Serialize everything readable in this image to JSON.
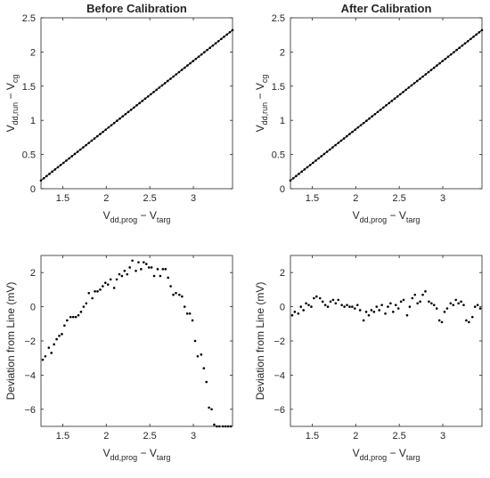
{
  "chart_data": [
    {
      "id": "before_main",
      "type": "line",
      "title": "Before Calibration",
      "xlabel": {
        "base": "V",
        "sub1": "dd,prog",
        "mid": " − V",
        "sub2": "targ"
      },
      "ylabel": {
        "base": "V",
        "sub1": "dd,run",
        "mid": " − V",
        "sub2": "cg"
      },
      "xlim": [
        1.25,
        3.45
      ],
      "ylim": [
        0,
        2.5
      ],
      "xticks": [
        1.5,
        2,
        2.5,
        3
      ],
      "xticklabels": [
        "1.5",
        "2",
        "2.5",
        "3"
      ],
      "yticks": [
        0,
        0.5,
        1,
        1.5,
        2,
        2.5
      ],
      "yticklabels": [
        "0",
        "0.5",
        "1",
        "1.5",
        "2",
        "2.5"
      ],
      "grid": false,
      "line": {
        "x": [
          1.25,
          3.45
        ],
        "y": [
          0.12,
          2.32
        ]
      },
      "markers": {
        "x_start": 1.25,
        "x_end": 3.45,
        "count": 69,
        "slope": 1.0,
        "intercept": -1.13
      }
    },
    {
      "id": "after_main",
      "type": "line",
      "title": "After Calibration",
      "xlabel": {
        "base": "V",
        "sub1": "dd,prog",
        "mid": " − V",
        "sub2": "targ"
      },
      "ylabel": {
        "base": "V",
        "sub1": "dd,run",
        "mid": " − V",
        "sub2": "cg"
      },
      "xlim": [
        1.25,
        3.45
      ],
      "ylim": [
        0,
        2.5
      ],
      "xticks": [
        1.5,
        2,
        2.5,
        3
      ],
      "xticklabels": [
        "1.5",
        "2",
        "2.5",
        "3"
      ],
      "yticks": [
        0,
        0.5,
        1,
        1.5,
        2,
        2.5
      ],
      "yticklabels": [
        "0",
        "0.5",
        "1",
        "1.5",
        "2",
        "2.5"
      ],
      "grid": false,
      "line": {
        "x": [
          1.25,
          3.45
        ],
        "y": [
          0.12,
          2.32
        ]
      },
      "markers": {
        "x_start": 1.25,
        "x_end": 3.45,
        "count": 69,
        "slope": 1.0,
        "intercept": -1.13
      }
    },
    {
      "id": "before_dev",
      "type": "scatter",
      "title": "",
      "xlabel": {
        "base": "V",
        "sub1": "dd,prog",
        "mid": " − V",
        "sub2": "targ"
      },
      "ylabel": {
        "text": "Deviation from Line (mV)"
      },
      "xlim": [
        1.25,
        3.45
      ],
      "ylim": [
        -7,
        3
      ],
      "xticks": [
        1.5,
        2,
        2.5,
        3
      ],
      "xticklabels": [
        "1.5",
        "2",
        "2.5",
        "3"
      ],
      "yticks": [
        -6,
        -4,
        -2,
        0,
        2
      ],
      "yticklabels": [
        "−6",
        "−4",
        "−2",
        "0",
        "2"
      ],
      "grid": false,
      "points": {
        "x": [
          1.27,
          1.3,
          1.34,
          1.37,
          1.4,
          1.43,
          1.46,
          1.49,
          1.52,
          1.55,
          1.59,
          1.62,
          1.65,
          1.68,
          1.71,
          1.74,
          1.77,
          1.8,
          1.84,
          1.87,
          1.9,
          1.93,
          1.96,
          1.99,
          2.02,
          2.05,
          2.09,
          2.12,
          2.15,
          2.18,
          2.21,
          2.24,
          2.27,
          2.3,
          2.34,
          2.37,
          2.4,
          2.43,
          2.46,
          2.49,
          2.52,
          2.55,
          2.59,
          2.62,
          2.65,
          2.68,
          2.71,
          2.74,
          2.77,
          2.8,
          2.84,
          2.87,
          2.9,
          2.93,
          2.96,
          2.99,
          3.02,
          3.05,
          3.09,
          3.12,
          3.15,
          3.18,
          3.21,
          3.24,
          3.27,
          3.3,
          3.34,
          3.37,
          3.4,
          3.43
        ],
        "y": [
          -3.1,
          -2.9,
          -2.4,
          -2.7,
          -2.2,
          -1.9,
          -1.7,
          -1.6,
          -1.1,
          -0.8,
          -0.6,
          -0.6,
          -0.6,
          -0.5,
          -0.3,
          0.0,
          0.2,
          0.8,
          0.5,
          0.9,
          0.9,
          1.0,
          1.2,
          1.4,
          1.3,
          1.6,
          1.1,
          1.6,
          1.9,
          1.8,
          2.1,
          1.9,
          2.3,
          2.7,
          2.1,
          2.6,
          2.2,
          2.6,
          2.5,
          2.3,
          2.3,
          1.8,
          2.2,
          1.8,
          2.2,
          2.2,
          1.7,
          1.2,
          0.7,
          0.8,
          0.7,
          0.6,
          0.0,
          -0.4,
          -0.4,
          -0.8,
          -2.0,
          -2.9,
          -2.8,
          -3.6,
          -4.4,
          -5.9,
          -6.0,
          -6.9,
          -7.0,
          -7.0,
          -7.0,
          -7.0,
          -7.0,
          -7.0
        ]
      }
    },
    {
      "id": "after_dev",
      "type": "scatter",
      "title": "",
      "xlabel": {
        "base": "V",
        "sub1": "dd,prog",
        "mid": " − V",
        "sub2": "targ"
      },
      "ylabel": {
        "text": "Deviation from Line (mV)"
      },
      "xlim": [
        1.25,
        3.45
      ],
      "ylim": [
        -7,
        3
      ],
      "xticks": [
        1.5,
        2,
        2.5,
        3
      ],
      "xticklabels": [
        "1.5",
        "2",
        "2.5",
        "3"
      ],
      "yticks": [
        -6,
        -4,
        -2,
        0,
        2
      ],
      "yticklabels": [
        "−6",
        "−4",
        "−2",
        "0",
        "2"
      ],
      "grid": false,
      "points": {
        "x": [
          1.27,
          1.3,
          1.34,
          1.37,
          1.4,
          1.43,
          1.46,
          1.49,
          1.52,
          1.55,
          1.59,
          1.62,
          1.65,
          1.68,
          1.71,
          1.74,
          1.77,
          1.8,
          1.84,
          1.87,
          1.9,
          1.93,
          1.96,
          1.99,
          2.02,
          2.05,
          2.09,
          2.12,
          2.15,
          2.18,
          2.21,
          2.24,
          2.27,
          2.3,
          2.34,
          2.37,
          2.4,
          2.43,
          2.46,
          2.49,
          2.52,
          2.55,
          2.59,
          2.62,
          2.65,
          2.68,
          2.71,
          2.74,
          2.77,
          2.8,
          2.84,
          2.87,
          2.9,
          2.93,
          2.96,
          2.99,
          3.02,
          3.05,
          3.09,
          3.12,
          3.15,
          3.18,
          3.21,
          3.24,
          3.27,
          3.3,
          3.34,
          3.37,
          3.4,
          3.43
        ],
        "y": [
          -0.5,
          -0.3,
          -0.4,
          0.0,
          -0.2,
          0.2,
          0.1,
          0.0,
          0.5,
          0.6,
          0.5,
          0.3,
          0.1,
          0.0,
          0.3,
          0.4,
          0.2,
          0.4,
          0.1,
          0.0,
          0.1,
          0.0,
          0.0,
          -0.1,
          0.1,
          -0.2,
          -0.8,
          -0.3,
          -0.5,
          -0.2,
          -0.3,
          0.0,
          -0.2,
          0.1,
          -0.4,
          0.0,
          0.2,
          -0.3,
          0.1,
          -0.1,
          0.3,
          0.4,
          -0.5,
          0.0,
          0.5,
          0.7,
          0.2,
          0.3,
          0.7,
          0.9,
          0.3,
          0.2,
          0.1,
          -0.1,
          -0.8,
          -0.9,
          -0.3,
          -0.1,
          0.2,
          0.1,
          0.4,
          0.2,
          0.3,
          0.1,
          -0.8,
          -0.9,
          -0.6,
          0.0,
          0.1,
          -0.1
        ]
      }
    }
  ]
}
